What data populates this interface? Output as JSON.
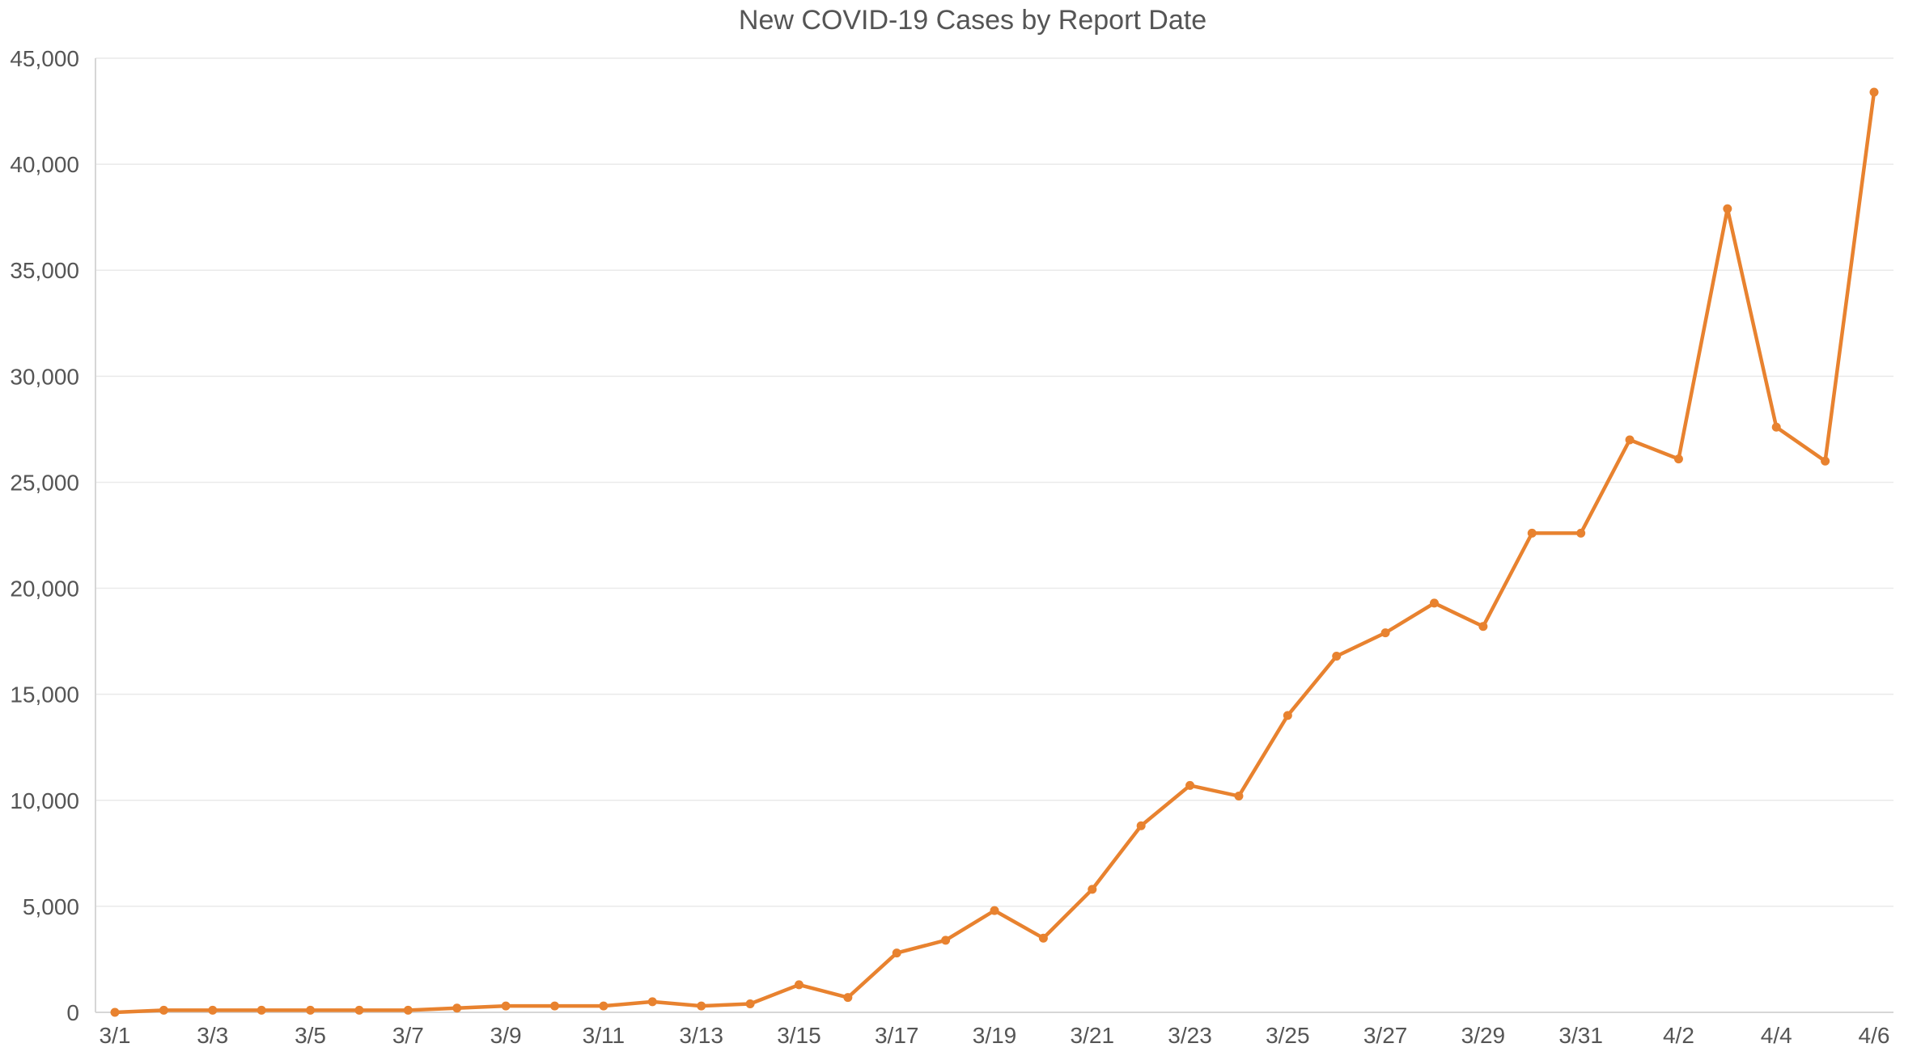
{
  "chart_data": {
    "type": "line",
    "title": "New COVID-19 Cases by Report Date",
    "xlabel": "",
    "ylabel": "",
    "ylim": [
      0,
      45000
    ],
    "yticks": [
      0,
      5000,
      10000,
      15000,
      20000,
      25000,
      30000,
      35000,
      40000,
      45000
    ],
    "ytick_labels": [
      "0",
      "5,000",
      "10,000",
      "15,000",
      "20,000",
      "25,000",
      "30,000",
      "35,000",
      "40,000",
      "45,000"
    ],
    "grid": "horizontal",
    "legend": "none",
    "categories": [
      "3/1",
      "3/2",
      "3/3",
      "3/4",
      "3/5",
      "3/6",
      "3/7",
      "3/8",
      "3/9",
      "3/10",
      "3/11",
      "3/12",
      "3/13",
      "3/14",
      "3/15",
      "3/16",
      "3/17",
      "3/18",
      "3/19",
      "3/20",
      "3/21",
      "3/22",
      "3/23",
      "3/24",
      "3/25",
      "3/26",
      "3/27",
      "3/28",
      "3/29",
      "3/30",
      "3/31",
      "4/1",
      "4/2",
      "4/3",
      "4/4",
      "4/5",
      "4/6"
    ],
    "xtick_labels": [
      "3/1",
      "",
      "3/3",
      "",
      "3/5",
      "",
      "3/7",
      "",
      "3/9",
      "",
      "3/11",
      "",
      "3/13",
      "",
      "3/15",
      "",
      "3/17",
      "",
      "3/19",
      "",
      "3/21",
      "",
      "3/23",
      "",
      "3/25",
      "",
      "3/27",
      "",
      "3/29",
      "",
      "3/31",
      "",
      "4/2",
      "",
      "4/4",
      "",
      "4/6"
    ],
    "series": [
      {
        "color": "#e8822f",
        "values": [
          0,
          100,
          100,
          100,
          100,
          100,
          100,
          200,
          300,
          300,
          300,
          500,
          300,
          400,
          1300,
          700,
          2800,
          3400,
          4800,
          3500,
          5800,
          8800,
          10700,
          10200,
          14000,
          16800,
          17900,
          19300,
          18200,
          22600,
          22600,
          27000,
          26100,
          37900,
          27600,
          26000,
          43400
        ]
      }
    ]
  }
}
